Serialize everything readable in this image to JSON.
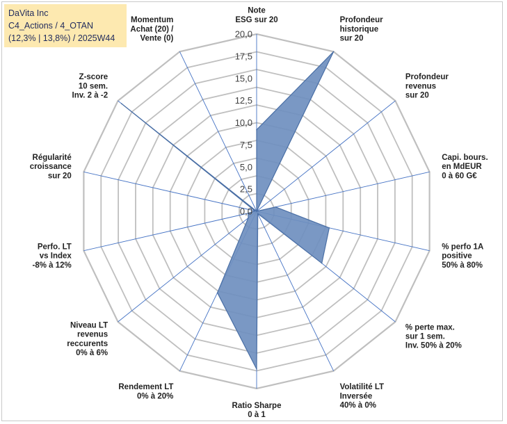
{
  "info": {
    "company": "DaVita Inc",
    "portfolio": "C4_Actions / 4_OTAN",
    "stats": "(12,3% | 13,8%) / 2025W44"
  },
  "colors": {
    "fill": "#6f8fbf",
    "stroke": "#4a6fa5",
    "spoke": "#4472c4",
    "grid": "#bfbfbf",
    "infobox": "#fde9b0"
  },
  "chart_data": {
    "type": "radar",
    "title": "",
    "axes": [
      {
        "label": [
          "Note",
          "ESG sur 20"
        ]
      },
      {
        "label": [
          "Profondeur",
          "historique",
          "sur 20"
        ]
      },
      {
        "label": [
          "Profondeur",
          "revenus",
          "sur 20"
        ]
      },
      {
        "label": [
          "Capi. bours.",
          "en MdEUR",
          "0 à 60 G€"
        ]
      },
      {
        "label": [
          "% perfo 1A",
          "positive",
          "50% à 80%"
        ]
      },
      {
        "label": [
          "% perte max.",
          "sur 1 sem.",
          "Inv. 50% à 20%"
        ]
      },
      {
        "label": [
          "Volatilité LT",
          "Inversée",
          "40% à 0%"
        ]
      },
      {
        "label": [
          "Ratio Sharpe",
          "0 à 1"
        ]
      },
      {
        "label": [
          "Rendement LT",
          "0% à 20%"
        ]
      },
      {
        "label": [
          "Niveau LT",
          "revenus",
          "reccurents",
          "0% à 6%"
        ]
      },
      {
        "label": [
          "Perfo. LT",
          "vs Index",
          "-8% à 12%"
        ]
      },
      {
        "label": [
          "Régularité",
          "croissance",
          "sur 20"
        ]
      },
      {
        "label": [
          "Z-score",
          "10 sem.",
          "Inv. 2 à -2"
        ]
      },
      {
        "label": [
          "Momentum",
          "Achat (20) /",
          "Vente (0)"
        ]
      }
    ],
    "values": [
      9.2,
      20.0,
      0.0,
      2.2,
      8.4,
      9.4,
      0.3,
      17.8,
      10.2,
      1.2,
      1.0,
      0.2,
      19.5,
      0.0
    ],
    "range": [
      0,
      20
    ],
    "tick_step": 2.5,
    "tick_labels": [
      "0,0",
      "2,5",
      "5,0",
      "7,5",
      "10,0",
      "12,5",
      "15,0",
      "17,5",
      "20,0"
    ],
    "grid_rings": 10
  }
}
